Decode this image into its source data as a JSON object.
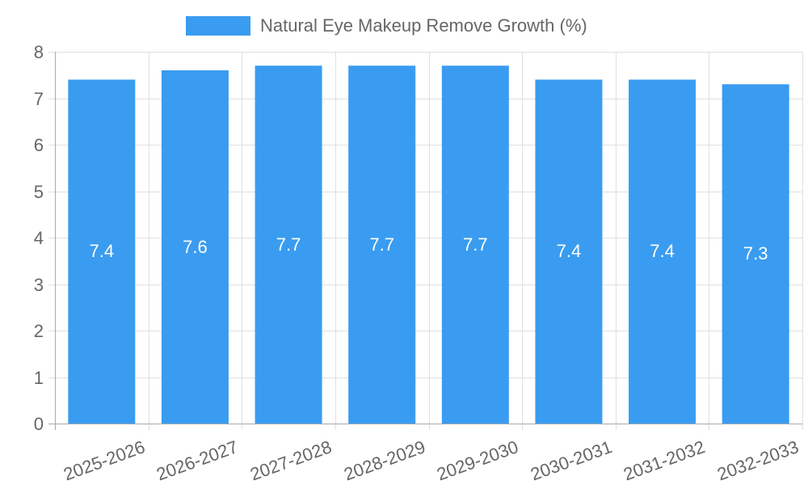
{
  "legend": {
    "label": "Natural Eye Makeup Remove Growth (%)",
    "color": "#3a9cf0"
  },
  "chart_data": {
    "type": "bar",
    "title": "",
    "xlabel": "",
    "ylabel": "",
    "categories": [
      "2025-2026",
      "2026-2027",
      "2027-2028",
      "2028-2029",
      "2029-2030",
      "2030-2031",
      "2031-2032",
      "2032-2033"
    ],
    "series": [
      {
        "name": "Natural Eye Makeup Remove Growth (%)",
        "values": [
          7.4,
          7.6,
          7.7,
          7.7,
          7.7,
          7.4,
          7.4,
          7.3
        ],
        "color": "#3a9cf0"
      }
    ],
    "data_labels": [
      "7.4",
      "7.6",
      "7.7",
      "7.7",
      "7.7",
      "7.4",
      "7.4",
      "7.3"
    ],
    "ylim": [
      0,
      8
    ],
    "yticks": [
      "0",
      "1",
      "2",
      "3",
      "4",
      "5",
      "6",
      "7",
      "8"
    ],
    "grid": true,
    "legend_position": "top"
  },
  "colors": {
    "bar": "#3a9cf0",
    "grid": "#e0e0e0",
    "axis": "#aaaaaa",
    "text": "#666666",
    "label": "#ffffff"
  }
}
